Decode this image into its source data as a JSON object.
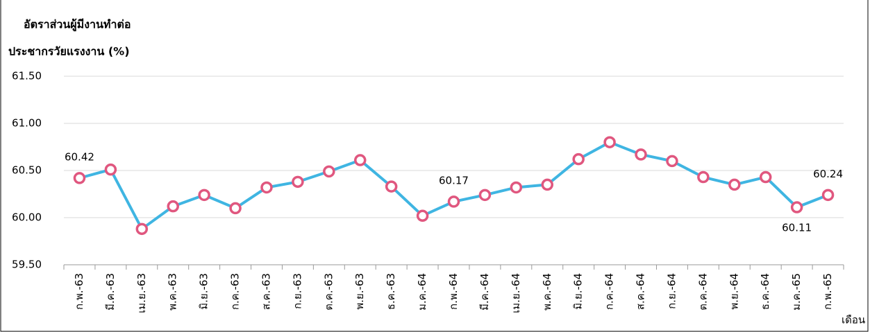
{
  "chart_data": {
    "type": "line",
    "y_label_lines": [
      "อัตราส่วนผู้มีงานทำต่อ",
      "ประชากรวัยแรงงาน (%)"
    ],
    "x_label": "เดือน",
    "categories": [
      "ก.พ.-63",
      "มี.ค.-63",
      "เม.ย.-63",
      "พ.ค.-63",
      "มิ.ย.-63",
      "ก.ค.-63",
      "ส.ค.-63",
      "ก.ย.-63",
      "ต.ค.-63",
      "พ.ย.-63",
      "ธ.ค.-63",
      "ม.ค.-64",
      "ก.พ.-64",
      "มี.ค.-64",
      "เม.ย.-64",
      "พ.ค.-64",
      "มิ.ย.-64",
      "ก.ค.-64",
      "ส.ค.-64",
      "ก.ย.-64",
      "ต.ค.-64",
      "พ.ย.-64",
      "ธ.ค.-64",
      "ม.ค.-65",
      "ก.พ.-65"
    ],
    "values": [
      60.42,
      60.51,
      59.88,
      60.12,
      60.24,
      60.1,
      60.32,
      60.38,
      60.49,
      60.61,
      60.33,
      60.02,
      60.17,
      60.24,
      60.32,
      60.35,
      60.62,
      60.8,
      60.67,
      60.6,
      60.43,
      60.35,
      60.43,
      60.11,
      60.24
    ],
    "value_labels": [
      "60.42",
      null,
      null,
      null,
      null,
      null,
      null,
      null,
      null,
      null,
      null,
      null,
      "60.17",
      null,
      null,
      null,
      null,
      null,
      null,
      null,
      null,
      null,
      null,
      "60.11",
      "60.24"
    ],
    "line_color": "#3fb5e2",
    "marker_color": "#e0577f",
    "ylim": [
      59.5,
      61.5
    ],
    "yticks": [
      {
        "value": 59.5,
        "label": "59.50"
      },
      {
        "value": 60,
        "label": "60.00"
      },
      {
        "value": 60.5,
        "label": "60.50"
      },
      {
        "value": 61,
        "label": "61.00"
      },
      {
        "value": 61.5,
        "label": "61.50"
      }
    ],
    "grid": true
  }
}
